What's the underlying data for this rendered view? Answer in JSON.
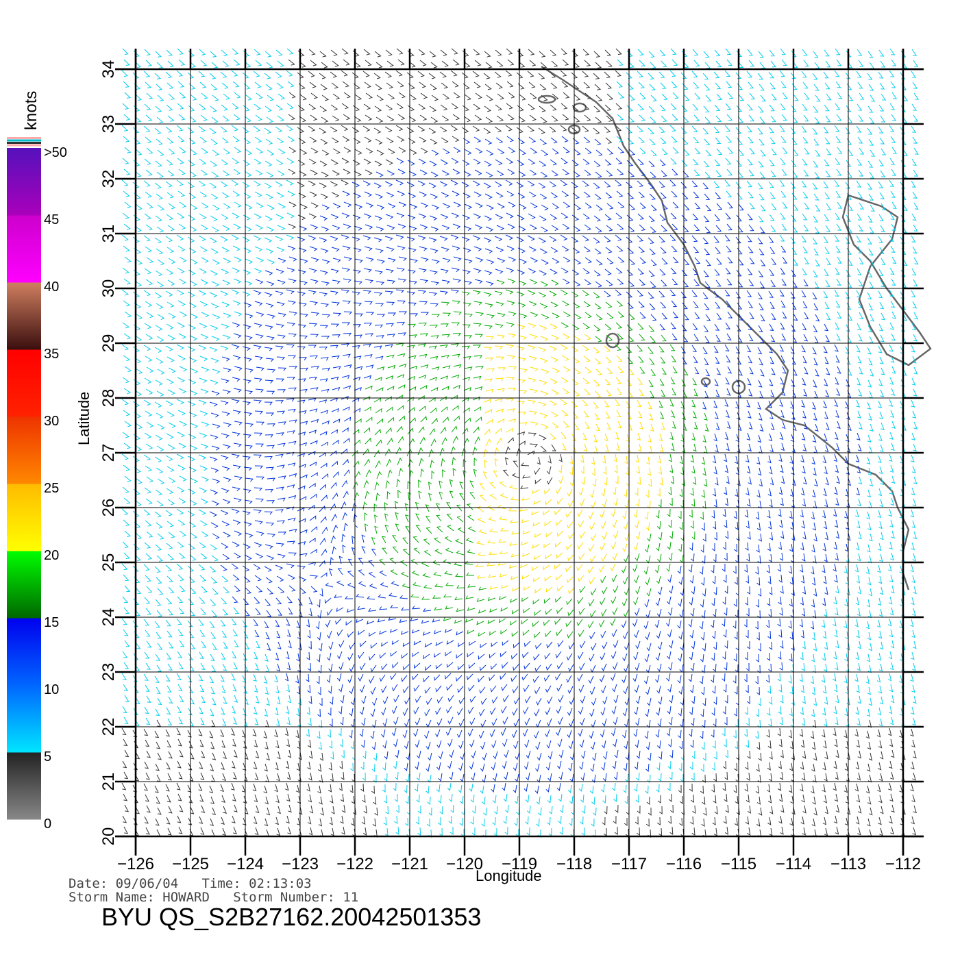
{
  "map": {
    "units_label": "knots",
    "xlabel": "Longitude",
    "ylabel": "Latitude",
    "lon_ticks": [
      -126,
      -125,
      -124,
      -123,
      -122,
      -121,
      -120,
      -119,
      -118,
      -117,
      -116,
      -115,
      -114,
      -113,
      -112
    ],
    "lat_ticks": [
      20,
      21,
      22,
      23,
      24,
      25,
      26,
      27,
      28,
      29,
      30,
      31,
      32,
      33,
      34
    ],
    "lon_range": [
      -126,
      -112
    ],
    "lat_range": [
      20,
      34
    ],
    "storm_center": {
      "lon": -118.8,
      "lat": 26.9
    },
    "colorbar": {
      "labels": [
        ">50",
        "45",
        "40",
        "35",
        "30",
        "25",
        "20",
        "15",
        "10",
        "5",
        "0"
      ],
      "bands": [
        {
          "min": 0,
          "max": 5,
          "colors": [
            "#888888",
            "#222222"
          ]
        },
        {
          "min": 5,
          "max": 10,
          "colors": [
            "#00e5ff",
            "#0066ff"
          ]
        },
        {
          "min": 10,
          "max": 15,
          "colors": [
            "#0066ff",
            "#0000ee"
          ]
        },
        {
          "min": 15,
          "max": 20,
          "colors": [
            "#006600",
            "#00ff00"
          ]
        },
        {
          "min": 20,
          "max": 25,
          "colors": [
            "#ffff00",
            "#ffbb00"
          ]
        },
        {
          "min": 25,
          "max": 30,
          "colors": [
            "#ff8800",
            "#ee3300"
          ]
        },
        {
          "min": 30,
          "max": 35,
          "colors": [
            "#ff2200",
            "#ff0000"
          ]
        },
        {
          "min": 35,
          "max": 40,
          "colors": [
            "#3a0e0e",
            "#d08060"
          ]
        },
        {
          "min": 40,
          "max": 45,
          "colors": [
            "#ff00ff",
            "#cc00cc"
          ]
        },
        {
          "min": 45,
          "max": 50,
          "colors": [
            "#aa00bb",
            "#5511bb"
          ]
        }
      ],
      "top_stripes": [
        "#ffaaaa",
        "#00bbcc",
        "#333333",
        "#ffaaaa"
      ]
    },
    "wind_colors": {
      "calm": "#333333",
      "light": "#00ccee",
      "moderate": "#0033dd",
      "fresh": "#00aa00",
      "strong": "#ffdd00"
    }
  },
  "footer": {
    "date_line": "Date: 09/06/04   Time: 02:13:03",
    "storm_line": "Storm Name: HOWARD   Storm Number: 11",
    "file_id": "BYU QS_S2B27162.20042501353"
  }
}
